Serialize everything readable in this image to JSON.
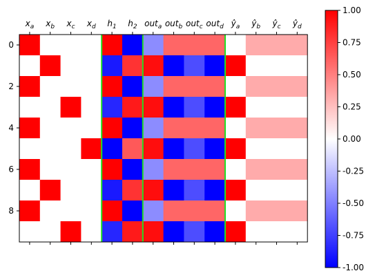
{
  "chart_data": {
    "type": "heatmap",
    "columns": [
      {
        "base": "x",
        "sub": "a",
        "hat": false
      },
      {
        "base": "x",
        "sub": "b",
        "hat": false
      },
      {
        "base": "x",
        "sub": "c",
        "hat": false
      },
      {
        "base": "x",
        "sub": "d",
        "hat": false
      },
      {
        "base": "h",
        "sub": "1",
        "hat": false
      },
      {
        "base": "h",
        "sub": "2",
        "hat": false
      },
      {
        "base": "out",
        "sub": "a",
        "hat": false
      },
      {
        "base": "out",
        "sub": "b",
        "hat": false
      },
      {
        "base": "out",
        "sub": "c",
        "hat": false
      },
      {
        "base": "out",
        "sub": "d",
        "hat": false
      },
      {
        "base": "y",
        "sub": "a",
        "hat": true
      },
      {
        "base": "y",
        "sub": "b",
        "hat": true
      },
      {
        "base": "y",
        "sub": "c",
        "hat": true
      },
      {
        "base": "y",
        "sub": "d",
        "hat": true
      }
    ],
    "row_ticks": [
      "0",
      "2",
      "4",
      "6",
      "8"
    ],
    "row_tick_values": [
      0,
      2,
      4,
      6,
      8
    ],
    "rows": 10,
    "values": [
      [
        1,
        0,
        0,
        0,
        1.0,
        -1.0,
        -0.45,
        0.6,
        0.6,
        0.6,
        0,
        0.33,
        0.33,
        0.33
      ],
      [
        0,
        1,
        0,
        0,
        -0.9,
        0.8,
        0.95,
        -1.0,
        -0.7,
        -1.0,
        1,
        0,
        0,
        0
      ],
      [
        1,
        0,
        0,
        0,
        1.0,
        -1.0,
        -0.45,
        0.6,
        0.6,
        0.6,
        0,
        0.33,
        0.33,
        0.33
      ],
      [
        0,
        0,
        1,
        0,
        -0.85,
        0.9,
        0.95,
        -1.0,
        -0.7,
        -1.0,
        1,
        0,
        0,
        0
      ],
      [
        1,
        0,
        0,
        0,
        1.0,
        -1.0,
        -0.45,
        0.6,
        0.6,
        0.6,
        0,
        0.33,
        0.33,
        0.33
      ],
      [
        0,
        0,
        0,
        1,
        -1.0,
        0.65,
        0.95,
        -1.0,
        -0.7,
        -1.0,
        1,
        0,
        0,
        0
      ],
      [
        1,
        0,
        0,
        0,
        1.0,
        -1.0,
        -0.45,
        0.6,
        0.6,
        0.6,
        0,
        0.33,
        0.33,
        0.33
      ],
      [
        0,
        1,
        0,
        0,
        -0.9,
        0.8,
        0.95,
        -1.0,
        -0.7,
        -1.0,
        1,
        0,
        0,
        0
      ],
      [
        1,
        0,
        0,
        0,
        1.0,
        -1.0,
        -0.45,
        0.6,
        0.6,
        0.6,
        0,
        0.33,
        0.33,
        0.33
      ],
      [
        0,
        0,
        1,
        0,
        -0.85,
        0.9,
        0.95,
        -1.0,
        -0.7,
        -1.0,
        1,
        0,
        0,
        0
      ]
    ],
    "colormap": "bwr",
    "vmin": -1.0,
    "vmax": 1.0,
    "separator_after_columns": [
      4,
      6,
      10
    ],
    "separator_color": "#22dd22",
    "colorbar": {
      "ticks": [
        1.0,
        0.75,
        0.5,
        0.25,
        0.0,
        -0.25,
        -0.5,
        -0.75,
        -1.0
      ],
      "tick_labels": [
        "1.00",
        "0.75",
        "0.50",
        "0.25",
        "0.00",
        "-0.25",
        "-0.50",
        "-0.75",
        "-1.00"
      ]
    },
    "title": "",
    "xlabel": "",
    "ylabel": ""
  }
}
